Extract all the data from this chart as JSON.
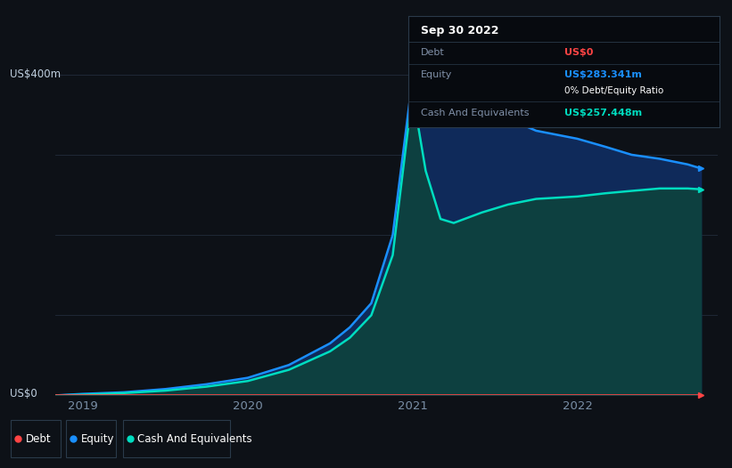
{
  "bg_color": "#0d1117",
  "plot_bg_color": "#0d1117",
  "grid_color": "#222c3c",
  "xlabel_color": "#7a8fa6",
  "ylabel_color": "#c0d0e0",
  "ylim": [
    0,
    420
  ],
  "xtick_positions": [
    2019,
    2020,
    2021,
    2022
  ],
  "xtick_labels": [
    "2019",
    "2020",
    "2021",
    "2022"
  ],
  "debt_color": "#ff4444",
  "equity_color": "#1a8fff",
  "equity_fill_color": "#0f2a5a",
  "cash_color": "#00ddc0",
  "cash_fill_color": "#0d4040",
  "tooltip_bg": "#070a0f",
  "tooltip_border": "#2a3a4a",
  "time_x": [
    2018.83,
    2019.0,
    2019.25,
    2019.5,
    2019.75,
    2020.0,
    2020.25,
    2020.5,
    2020.62,
    2020.75,
    2020.88,
    2021.0,
    2021.08,
    2021.17,
    2021.25,
    2021.42,
    2021.58,
    2021.75,
    2022.0,
    2022.17,
    2022.33,
    2022.5,
    2022.67,
    2022.75
  ],
  "equity_y": [
    0,
    2,
    4,
    8,
    14,
    22,
    38,
    65,
    85,
    115,
    200,
    395,
    380,
    355,
    345,
    360,
    345,
    330,
    320,
    310,
    300,
    295,
    288,
    283
  ],
  "cash_y": [
    0,
    1,
    3,
    6,
    11,
    18,
    32,
    55,
    72,
    100,
    175,
    378,
    280,
    220,
    215,
    228,
    238,
    245,
    248,
    252,
    255,
    258,
    258,
    257
  ],
  "debt_y": [
    0,
    0,
    0,
    0,
    0,
    0,
    0,
    0,
    0,
    0,
    0,
    0,
    0,
    0,
    0,
    0,
    0,
    0,
    0,
    0,
    0,
    0,
    0,
    0
  ],
  "tooltip_date": "Sep 30 2022",
  "tooltip_debt_label": "Debt",
  "tooltip_debt_value": "US$0",
  "tooltip_equity_label": "Equity",
  "tooltip_equity_value": "US$283.341m",
  "tooltip_ratio_value": "0% Debt/Equity Ratio",
  "tooltip_ratio_bold": "0%",
  "tooltip_cash_label": "Cash And Equivalents",
  "tooltip_cash_value": "US$257.448m",
  "legend_items": [
    "Debt",
    "Equity",
    "Cash And Equivalents"
  ],
  "legend_colors": [
    "#ff4444",
    "#1a8fff",
    "#00ddc0"
  ],
  "ylabel_0": "US$0",
  "ylabel_400": "US$400m"
}
